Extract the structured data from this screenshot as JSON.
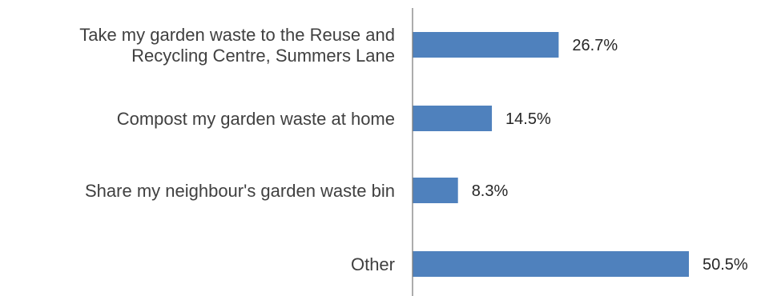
{
  "chart_data": {
    "type": "bar",
    "orientation": "horizontal",
    "title": "",
    "xlabel": "",
    "ylabel": "",
    "categories": [
      [
        "Take my garden waste to the Reuse and",
        "Recycling Centre, Summers Lane"
      ],
      [
        "Compost my garden waste at home"
      ],
      [
        "Share my neighbour's garden waste bin"
      ],
      [
        "Other"
      ]
    ],
    "values": [
      26.7,
      14.5,
      8.3,
      50.5
    ],
    "value_labels": [
      "26.7%",
      "14.5%",
      "8.3%",
      "50.5%"
    ],
    "value_unit": "%",
    "xlim": [
      0,
      50.5
    ],
    "bar_color": "#4f81bd",
    "grid": false,
    "legend": "none"
  }
}
